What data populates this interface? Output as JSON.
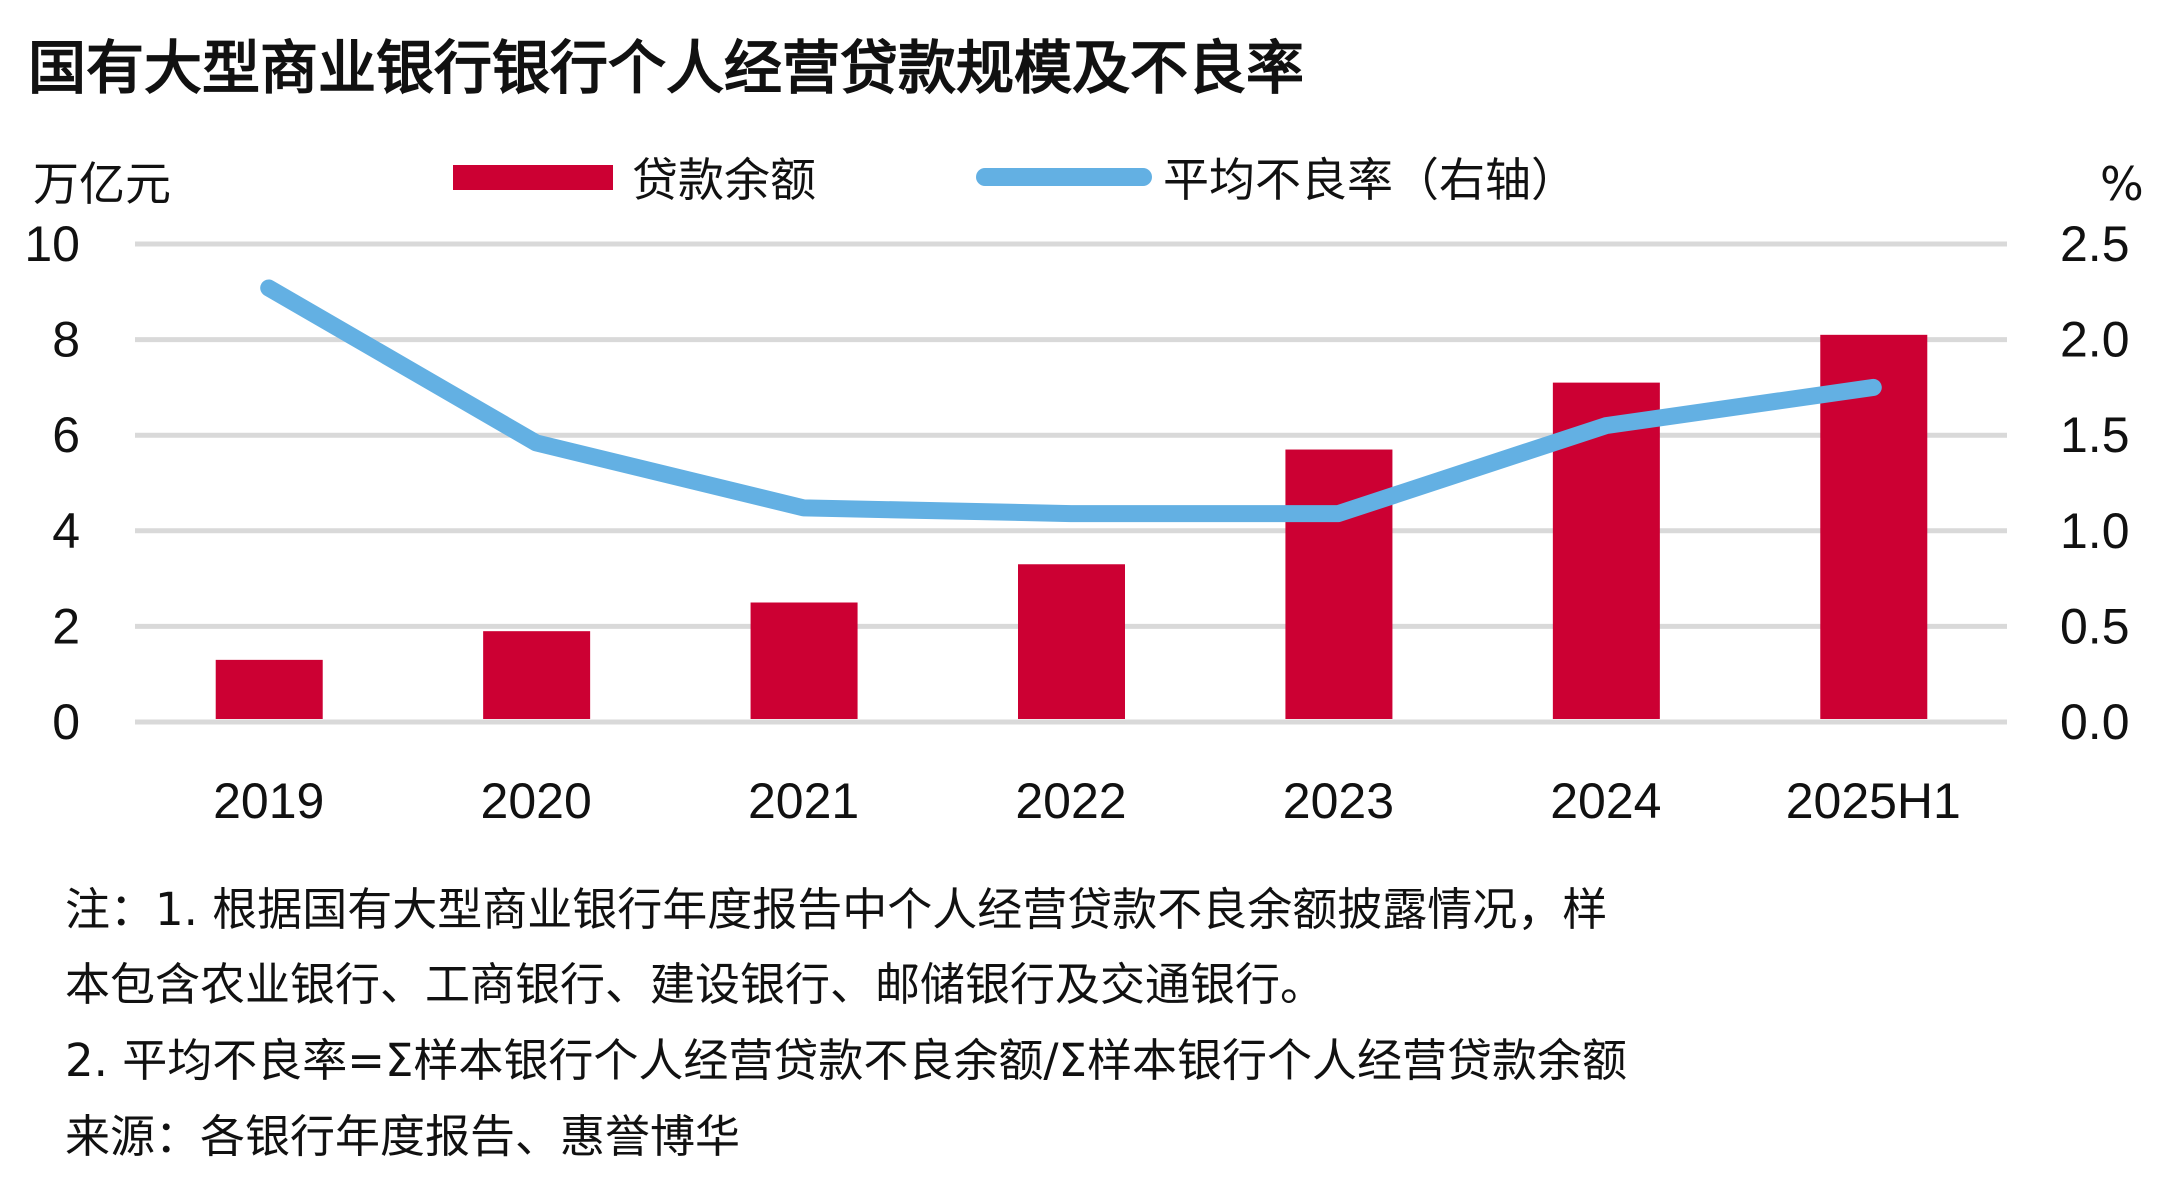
{
  "chart_data": {
    "type": "bar+line",
    "title": "国有大型商业银行银行个人经营贷款规模及不良率",
    "left_axis_label": "万亿元",
    "right_axis_label": "%",
    "categories": [
      "2019",
      "2020",
      "2021",
      "2022",
      "2023",
      "2024",
      "2025H1"
    ],
    "series": [
      {
        "name": "贷款余额",
        "type": "bar",
        "axis": "left",
        "color": "#cc0033",
        "values": [
          1.3,
          1.9,
          2.5,
          3.3,
          5.7,
          7.1,
          8.1
        ]
      },
      {
        "name": "平均不良率（右轴）",
        "type": "line",
        "axis": "right",
        "color": "#63b0e3",
        "values": [
          2.27,
          1.46,
          1.12,
          1.09,
          1.09,
          1.55,
          1.75
        ]
      }
    ],
    "left_ylim": [
      0,
      10
    ],
    "left_ticks": [
      "0",
      "2",
      "4",
      "6",
      "8",
      "10"
    ],
    "right_ylim": [
      0,
      2.5
    ],
    "right_ticks": [
      "0.0",
      "0.5",
      "1.0",
      "1.5",
      "2.0",
      "2.5"
    ],
    "grid": true,
    "legend_position": "top"
  },
  "notes": [
    "注：1. 根据国有大型商业银行年度报告中个人经营贷款不良余额披露情况，样",
    "本包含农业银行、工商银行、建设银行、邮储银行及交通银行。",
    "2. 平均不良率=Σ样本银行个人经营贷款不良余额/Σ样本银行个人经营贷款余额",
    "来源：各银行年度报告、惠誉博华"
  ]
}
